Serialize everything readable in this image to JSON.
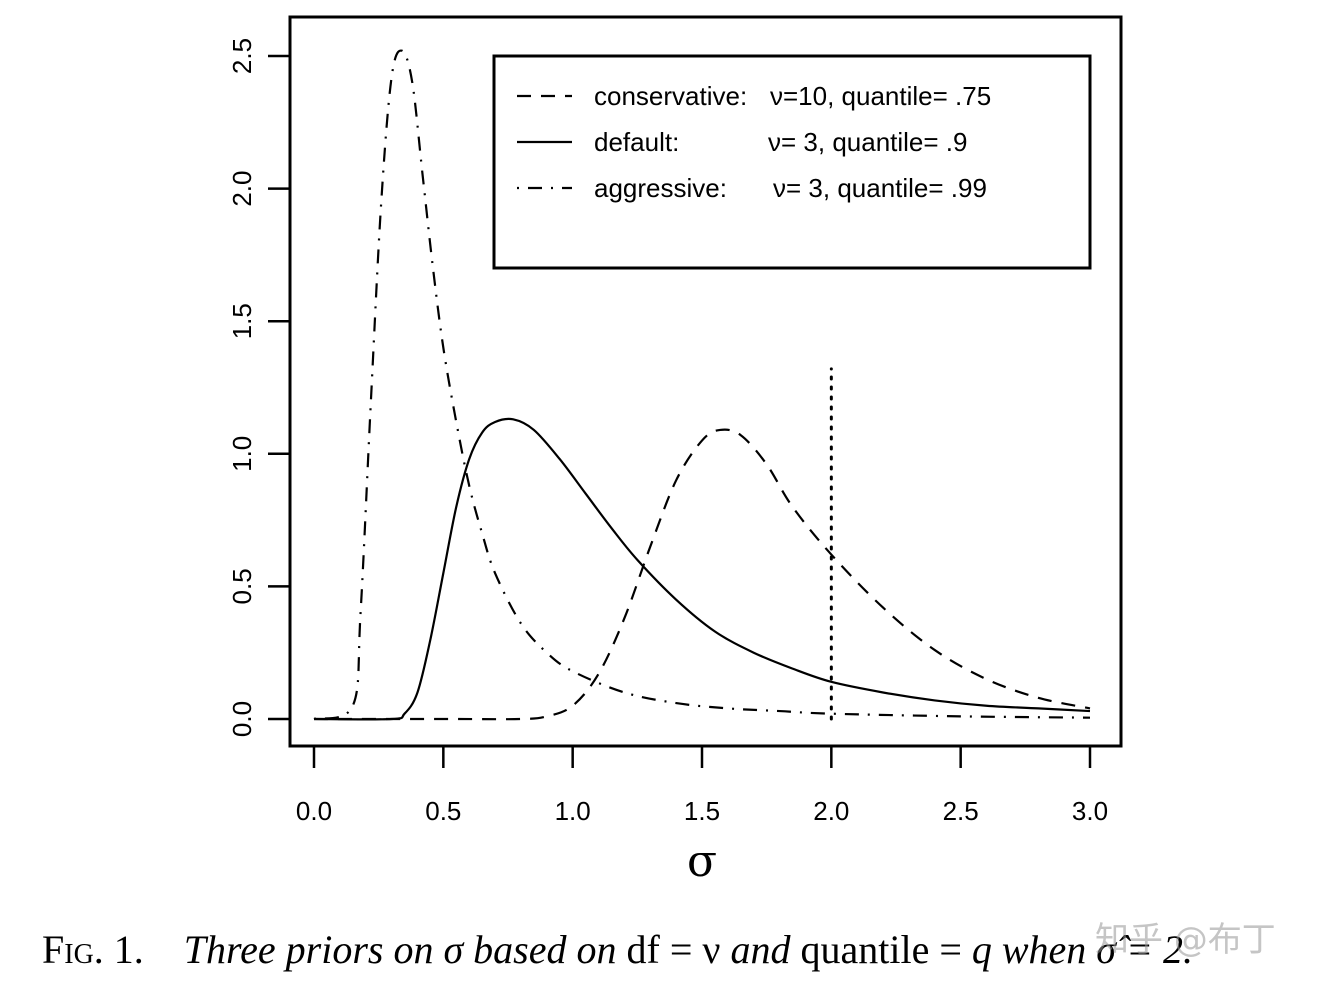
{
  "chart_data": {
    "type": "line",
    "title": "",
    "xlabel": "σ",
    "ylabel": "",
    "xlim": [
      0.0,
      3.0
    ],
    "ylim": [
      0.0,
      2.5
    ],
    "xticks": [
      "0.0",
      "0.5",
      "1.0",
      "1.5",
      "2.0",
      "2.5",
      "3.0"
    ],
    "yticks": [
      "0.0",
      "0.5",
      "1.0",
      "1.5",
      "2.0",
      "2.5"
    ],
    "grid": false,
    "legend_position": "top-right",
    "series": [
      {
        "name": "conservative: ν=10, quantile= .75",
        "linestyle": "dashed",
        "x": [
          0.0,
          0.5,
          0.8,
          0.9,
          1.0,
          1.1,
          1.2,
          1.3,
          1.4,
          1.5,
          1.57,
          1.65,
          1.75,
          1.85,
          2.0,
          2.2,
          2.4,
          2.6,
          2.8,
          3.0
        ],
        "values": [
          0.0,
          0.0,
          0.0,
          0.01,
          0.05,
          0.17,
          0.38,
          0.65,
          0.9,
          1.05,
          1.09,
          1.07,
          0.96,
          0.8,
          0.62,
          0.42,
          0.26,
          0.15,
          0.08,
          0.04
        ]
      },
      {
        "name": "default: ν= 3, quantile= .9",
        "linestyle": "solid",
        "x": [
          0.0,
          0.3,
          0.35,
          0.4,
          0.45,
          0.5,
          0.55,
          0.6,
          0.65,
          0.7,
          0.77,
          0.85,
          0.95,
          1.05,
          1.15,
          1.25,
          1.4,
          1.55,
          1.7,
          1.85,
          2.0,
          2.2,
          2.4,
          2.6,
          2.8,
          3.0
        ],
        "values": [
          0.0,
          0.0,
          0.02,
          0.1,
          0.3,
          0.55,
          0.8,
          0.98,
          1.08,
          1.12,
          1.13,
          1.09,
          0.98,
          0.85,
          0.72,
          0.6,
          0.45,
          0.33,
          0.25,
          0.19,
          0.14,
          0.1,
          0.07,
          0.05,
          0.04,
          0.03
        ]
      },
      {
        "name": "aggressive: ν= 3, quantile= .99",
        "linestyle": "dotdash",
        "x": [
          0.0,
          0.15,
          0.18,
          0.22,
          0.26,
          0.3,
          0.34,
          0.38,
          0.42,
          0.46,
          0.5,
          0.55,
          0.6,
          0.65,
          0.7,
          0.8,
          0.9,
          1.0,
          1.2,
          1.4,
          1.6,
          1.8,
          2.0,
          2.5,
          3.0
        ],
        "values": [
          0.0,
          0.05,
          0.4,
          1.2,
          1.95,
          2.42,
          2.52,
          2.4,
          2.05,
          1.7,
          1.4,
          1.12,
          0.88,
          0.7,
          0.55,
          0.36,
          0.25,
          0.18,
          0.1,
          0.06,
          0.04,
          0.03,
          0.02,
          0.01,
          0.005
        ]
      }
    ],
    "annotations": [
      {
        "type": "vline",
        "x": 2.0,
        "y_from": 0.0,
        "y_to": 1.32,
        "linestyle": "dotted"
      }
    ]
  },
  "legend": {
    "items": [
      {
        "label": "conservative: ν=10, quantile= .75",
        "name": "conservative:",
        "params": "ν=10, quantile= .75",
        "linestyle": "dashed"
      },
      {
        "label": "default: ν= 3, quantile= .9",
        "name": "default:",
        "params": "ν= 3, quantile= .9",
        "linestyle": "solid"
      },
      {
        "label": "aggressive: ν= 3, quantile= .99",
        "name": "aggressive:",
        "params": "ν= 3, quantile= .99",
        "linestyle": "dotdash"
      }
    ]
  },
  "caption": {
    "fig_label": "Fig. 1.",
    "part1": "Three priors on σ based on",
    "part2": "df = ν",
    "part3": "and",
    "part4": "quantile = ",
    "part5": "q when σ̂ = 2."
  },
  "watermark": "知乎 @布丁",
  "colors": {
    "line": "#000000",
    "background": "#ffffff"
  }
}
